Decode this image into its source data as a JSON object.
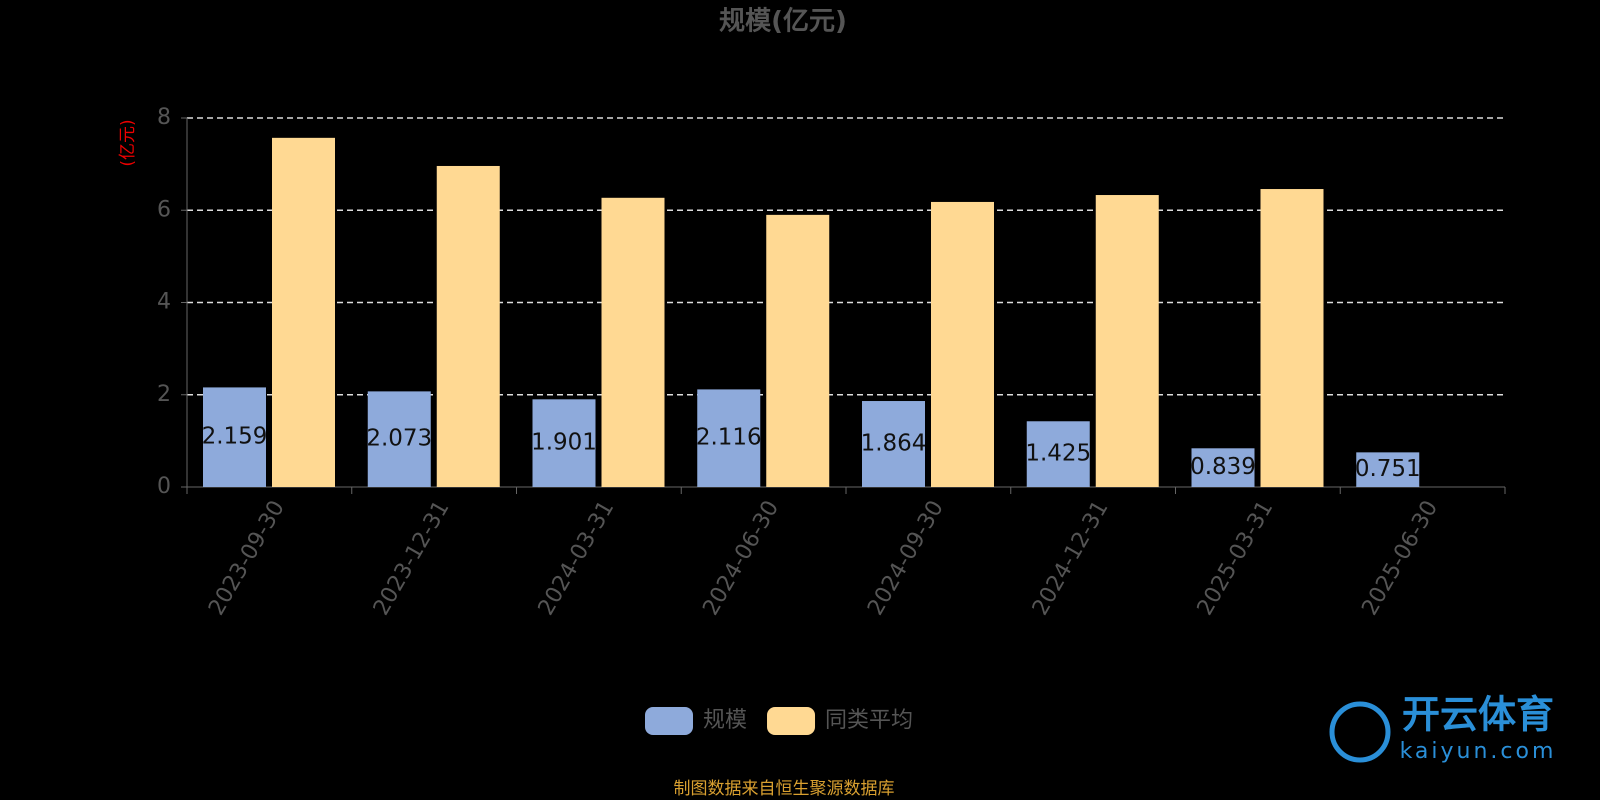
{
  "chart_data": {
    "type": "bar",
    "title": "规模(亿元)",
    "y_label": "(亿元)",
    "categories": [
      "2023-09-30",
      "2023-12-31",
      "2024-03-31",
      "2024-06-30",
      "2024-09-30",
      "2024-12-31",
      "2025-03-31",
      "2025-06-30"
    ],
    "series": [
      {
        "name": "规模",
        "color": "#8eaadb",
        "values": [
          2.159,
          2.073,
          1.901,
          2.116,
          1.864,
          1.425,
          0.839,
          0.751
        ],
        "show_labels": true
      },
      {
        "name": "同类平均",
        "color": "#ffd993",
        "values": [
          7.57,
          6.96,
          6.27,
          5.9,
          6.18,
          6.33,
          6.46,
          null
        ],
        "show_labels": false
      }
    ],
    "ylim": [
      0,
      8
    ],
    "yticks": [
      0,
      2,
      4,
      6,
      8
    ],
    "grid": true,
    "legend": "bottom",
    "source": "制图数据来自恒生聚源数据库",
    "watermark": {
      "brand": "开云体育",
      "url": "kaiyun.com"
    }
  }
}
